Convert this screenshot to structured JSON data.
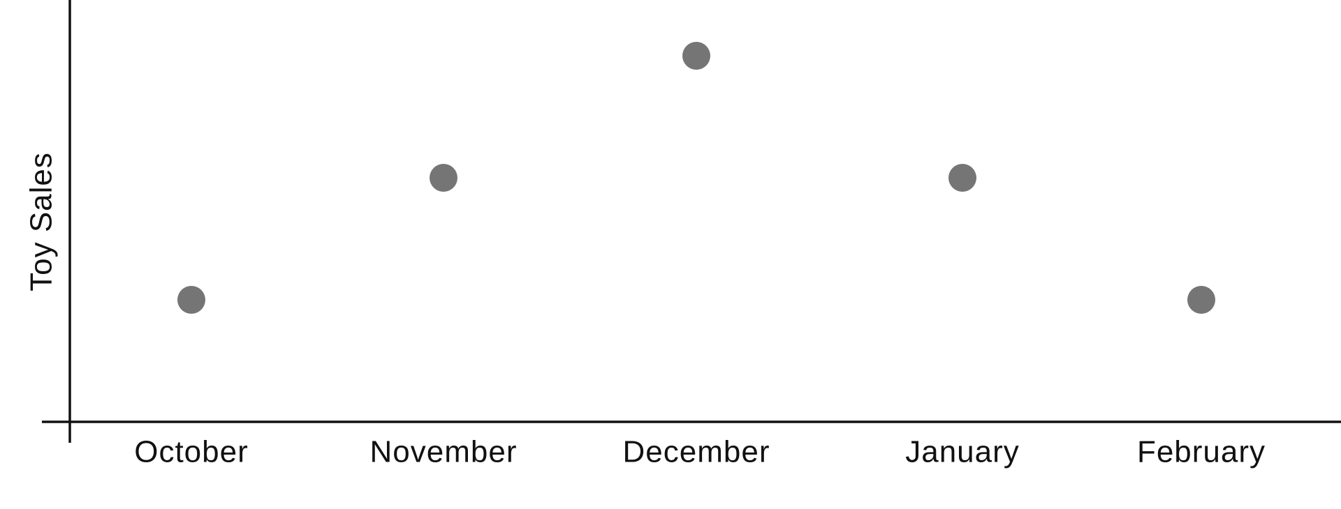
{
  "chart_data": {
    "type": "scatter",
    "title": "",
    "xlabel": "",
    "ylabel": "Toy Sales",
    "categories": [
      "October",
      "November",
      "December",
      "January",
      "February"
    ],
    "values": [
      1,
      2,
      3,
      2,
      1
    ],
    "ylim": [
      0,
      3.5
    ],
    "grid": false,
    "legend": "none",
    "point_color": "#757575",
    "axis_color": "#111111"
  }
}
